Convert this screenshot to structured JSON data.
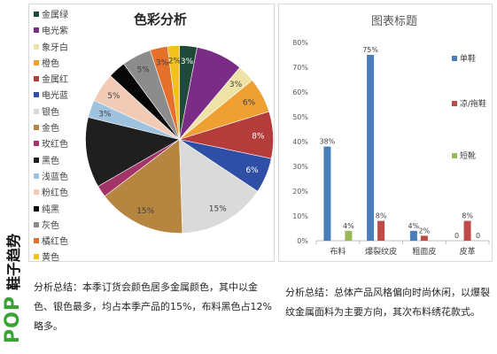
{
  "logo": {
    "brand": "POP",
    "name": "鞋子趋势"
  },
  "chart_data": [
    {
      "type": "pie",
      "title": "色彩分析",
      "legend": "left",
      "slices": [
        {
          "name": "金属绿",
          "value": 3,
          "label": "3%",
          "color": "#1f4a37"
        },
        {
          "name": "电光紫",
          "value": 8,
          "label": "",
          "color": "#7a2c86"
        },
        {
          "name": "象牙白",
          "value": 3,
          "label": "3%",
          "color": "#efe2a6"
        },
        {
          "name": "橙色",
          "value": 6,
          "label": "6%",
          "color": "#eea032"
        },
        {
          "name": "金属红",
          "value": 8,
          "label": "8%",
          "color": "#b43d3c"
        },
        {
          "name": "电光蓝",
          "value": 6,
          "label": "6%",
          "color": "#2e4fa5"
        },
        {
          "name": "银色",
          "value": 15,
          "label": "15%",
          "color": "#dadada"
        },
        {
          "name": "金色",
          "value": 15,
          "label": "15%",
          "color": "#b6853f"
        },
        {
          "name": "玫红色",
          "value": 2,
          "label": "",
          "color": "#a3346a"
        },
        {
          "name": "黑色",
          "value": 12,
          "label": "",
          "color": "#1f1f1f"
        },
        {
          "name": "浅蓝色",
          "value": 3,
          "label": "3%",
          "color": "#9fc3de"
        },
        {
          "name": "粉红色",
          "value": 5,
          "label": "5%",
          "color": "#f2cbb7"
        },
        {
          "name": "纯黑",
          "value": 3,
          "label": "",
          "color": "#070707"
        },
        {
          "name": "灰色",
          "value": 5,
          "label": "5%",
          "color": "#8c8c8c"
        },
        {
          "name": "橘红色",
          "value": 3,
          "label": "3%",
          "color": "#e5702c"
        },
        {
          "name": "黄色",
          "value": 2,
          "label": "2%",
          "color": "#f1c21c"
        }
      ]
    },
    {
      "type": "bar",
      "title": "图表标题",
      "categories": [
        "布料",
        "爆裂纹皮",
        "粗面皮",
        "皮革"
      ],
      "series": [
        {
          "name": "单鞋",
          "values": [
            38,
            75,
            4,
            0
          ],
          "labels": [
            "38%",
            "75%",
            "4%",
            "0"
          ],
          "color": "#4a7ebb"
        },
        {
          "name": "凉/拖鞋",
          "values": [
            0,
            8,
            2,
            8
          ],
          "labels": [
            "",
            "8%",
            "2%",
            "8%"
          ],
          "color": "#be4b48"
        },
        {
          "name": "短靴",
          "values": [
            4,
            0,
            0,
            0
          ],
          "labels": [
            "4%",
            "",
            "",
            "0"
          ],
          "color": "#98b954"
        }
      ],
      "ylim": [
        0,
        80
      ],
      "ytick_values": [
        0,
        10,
        20,
        30,
        40,
        50,
        60,
        70,
        80
      ],
      "ytick_labels": [
        "0%",
        "10%",
        "20%",
        "30%",
        "40%",
        "50%",
        "60%",
        "70%",
        "80%"
      ],
      "grid": false,
      "legend": "right"
    }
  ],
  "analysis": {
    "left": [
      "分析总结：本季订货会颜色居多金属颜色，其中以金",
      "色、银色最多，均占本季产品的15%，布料黑色占12%",
      "略多。"
    ],
    "right": [
      "分析总结：总体产品风格偏向时尚休闲，以爆裂",
      "纹金属面料为主要方向，其次布料绣花款式。"
    ]
  }
}
